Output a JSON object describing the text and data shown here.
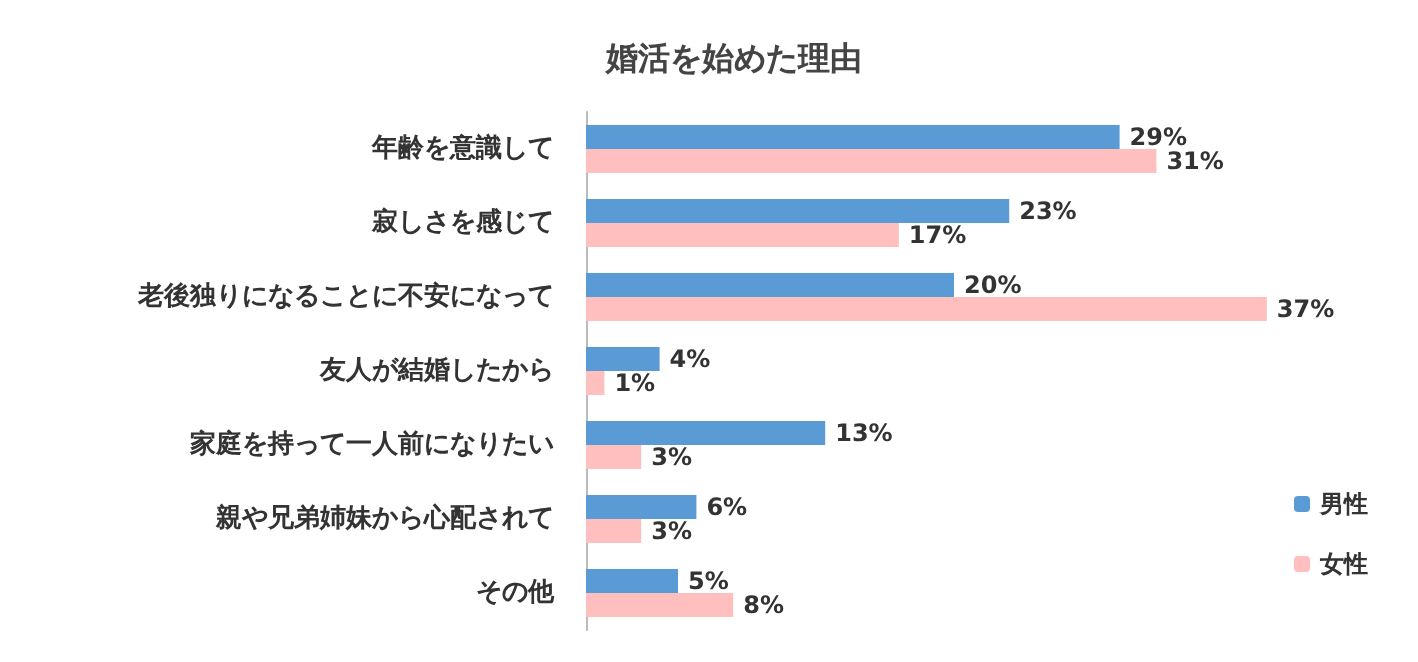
{
  "chart_data": {
    "type": "bar",
    "orientation": "horizontal",
    "title": "婚活を始めた理由",
    "categories": [
      "年齢を意識して",
      "寂しさを感じて",
      "老後独りになることに不安になって",
      "友人が結婚したから",
      "家庭を持って一人前になりたい",
      "親や兄弟姉妹から心配されて",
      "その他"
    ],
    "series": [
      {
        "name": "男性",
        "color": "#5b9bd5",
        "values": [
          29,
          23,
          20,
          4,
          13,
          6,
          5
        ],
        "value_labels": [
          "29%",
          "23%",
          "20%",
          "4%",
          "13%",
          "6%",
          "5%"
        ]
      },
      {
        "name": "女性",
        "color": "#ffbfbf",
        "values": [
          31,
          17,
          37,
          1,
          3,
          3,
          8
        ],
        "value_labels": [
          "31%",
          "17%",
          "37%",
          "1%",
          "3%",
          "3%",
          "8%"
        ]
      }
    ],
    "legend": "bottom right",
    "grid": false
  }
}
